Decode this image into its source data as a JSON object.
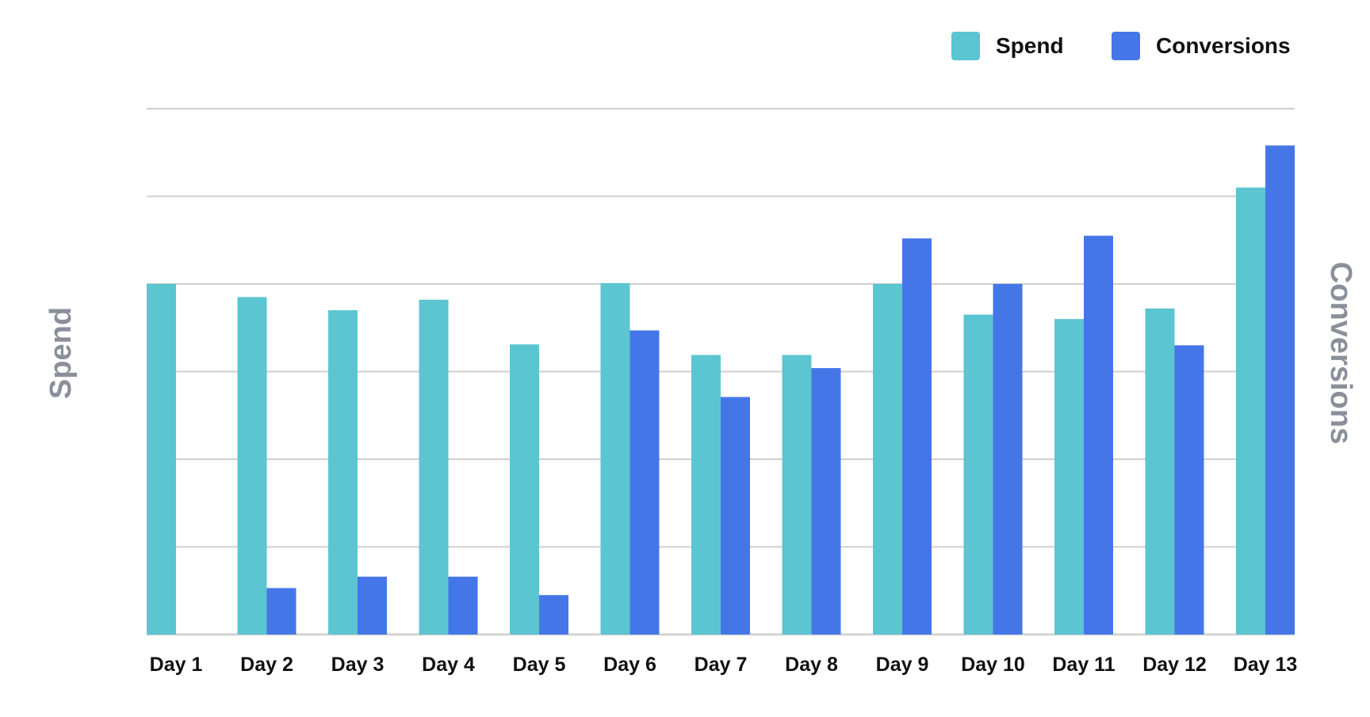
{
  "colors": {
    "spend": "#5bc5d1",
    "conversions": "#4576e8",
    "grid": "#cfcfcf",
    "axis_title": "#8a8f99"
  },
  "chart_data": {
    "type": "bar",
    "categories": [
      "Day 1",
      "Day 2",
      "Day 3",
      "Day 4",
      "Day 5",
      "Day 6",
      "Day 7",
      "Day 8",
      "Day 9",
      "Day 10",
      "Day 11",
      "Day 12",
      "Day 13"
    ],
    "series": [
      {
        "name": "Spend",
        "axis": "left",
        "values": [
          4.0,
          3.85,
          3.7,
          3.82,
          3.31,
          4.01,
          3.19,
          3.19,
          4.0,
          3.65,
          3.6,
          3.72,
          5.1
        ]
      },
      {
        "name": "Conversions",
        "axis": "right",
        "values": [
          0,
          0.53,
          0.66,
          0.66,
          0.45,
          3.47,
          2.71,
          3.04,
          4.52,
          4.0,
          4.55,
          3.3,
          5.58
        ]
      }
    ],
    "ylabel": "Spend",
    "y2label": "Conversions",
    "ylim": [
      0,
      6
    ],
    "y2lim": [
      0,
      6
    ],
    "grid": true,
    "legend_position": "top-right",
    "show_tick_values": false
  }
}
